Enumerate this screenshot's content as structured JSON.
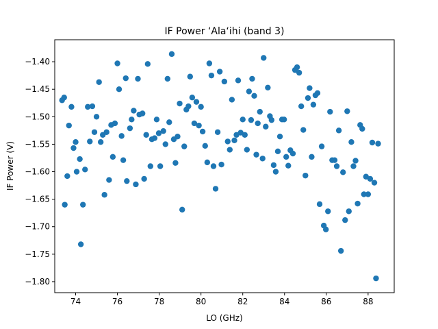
{
  "chart_data": {
    "type": "scatter",
    "title": "IF Power ‘Ala‘ihi (band 3)",
    "xlabel": "LO (GHz)",
    "ylabel": "IF Power (V)",
    "xlim": [
      73.0,
      89.25
    ],
    "ylim": [
      -1.82,
      -1.36
    ],
    "xticks": [
      74,
      76,
      78,
      80,
      82,
      84,
      86,
      88
    ],
    "xtick_labels": [
      "74",
      "76",
      "78",
      "80",
      "82",
      "84",
      "86",
      "88"
    ],
    "yticks": [
      -1.4,
      -1.45,
      -1.5,
      -1.55,
      -1.6,
      -1.65,
      -1.7,
      -1.75,
      -1.8
    ],
    "ytick_labels": [
      "−1.40",
      "−1.45",
      "−1.50",
      "−1.55",
      "−1.60",
      "−1.65",
      "−1.70",
      "−1.75",
      "−1.80"
    ],
    "grid": false,
    "marker_color": "#1f77b4",
    "series": [
      {
        "points": [
          [
            73.35,
            -1.47
          ],
          [
            73.45,
            -1.465
          ],
          [
            73.48,
            -1.66
          ],
          [
            73.6,
            -1.608
          ],
          [
            73.68,
            -1.516
          ],
          [
            73.8,
            -1.482
          ],
          [
            73.9,
            -1.557
          ],
          [
            74.0,
            -1.546
          ],
          [
            74.05,
            -1.6
          ],
          [
            74.2,
            -1.577
          ],
          [
            74.25,
            -1.732
          ],
          [
            74.35,
            -1.66
          ],
          [
            74.45,
            -1.596
          ],
          [
            74.58,
            -1.482
          ],
          [
            74.68,
            -1.545
          ],
          [
            74.8,
            -1.481
          ],
          [
            74.9,
            -1.528
          ],
          [
            75.0,
            -1.5
          ],
          [
            75.12,
            -1.437
          ],
          [
            75.2,
            -1.546
          ],
          [
            75.3,
            -1.533
          ],
          [
            75.38,
            -1.642
          ],
          [
            75.48,
            -1.528
          ],
          [
            75.6,
            -1.615
          ],
          [
            75.7,
            -1.515
          ],
          [
            75.78,
            -1.573
          ],
          [
            75.88,
            -1.512
          ],
          [
            76.0,
            -1.403
          ],
          [
            76.08,
            -1.45
          ],
          [
            76.2,
            -1.535
          ],
          [
            76.28,
            -1.579
          ],
          [
            76.4,
            -1.43
          ],
          [
            76.45,
            -1.617
          ],
          [
            76.6,
            -1.521
          ],
          [
            76.68,
            -1.505
          ],
          [
            76.78,
            -1.489
          ],
          [
            76.88,
            -1.623
          ],
          [
            76.98,
            -1.431
          ],
          [
            77.05,
            -1.496
          ],
          [
            77.2,
            -1.494
          ],
          [
            77.28,
            -1.613
          ],
          [
            77.38,
            -1.533
          ],
          [
            77.45,
            -1.404
          ],
          [
            77.58,
            -1.59
          ],
          [
            77.65,
            -1.541
          ],
          [
            77.78,
            -1.539
          ],
          [
            77.88,
            -1.505
          ],
          [
            77.98,
            -1.53
          ],
          [
            78.05,
            -1.59
          ],
          [
            78.2,
            -1.526
          ],
          [
            78.3,
            -1.55
          ],
          [
            78.4,
            -1.431
          ],
          [
            78.48,
            -1.51
          ],
          [
            78.6,
            -1.386
          ],
          [
            78.7,
            -1.541
          ],
          [
            78.78,
            -1.584
          ],
          [
            78.88,
            -1.536
          ],
          [
            78.98,
            -1.476
          ],
          [
            79.1,
            -1.669
          ],
          [
            79.2,
            -1.554
          ],
          [
            79.3,
            -1.487
          ],
          [
            79.4,
            -1.481
          ],
          [
            79.48,
            -1.427
          ],
          [
            79.58,
            -1.465
          ],
          [
            79.68,
            -1.512
          ],
          [
            79.78,
            -1.473
          ],
          [
            79.9,
            -1.516
          ],
          [
            80.0,
            -1.482
          ],
          [
            80.08,
            -1.527
          ],
          [
            80.2,
            -1.553
          ],
          [
            80.3,
            -1.583
          ],
          [
            80.4,
            -1.403
          ],
          [
            80.5,
            -1.425
          ],
          [
            80.6,
            -1.59
          ],
          [
            80.7,
            -1.631
          ],
          [
            80.8,
            -1.528
          ],
          [
            80.9,
            -1.418
          ],
          [
            80.98,
            -1.587
          ],
          [
            81.12,
            -1.436
          ],
          [
            81.28,
            -1.545
          ],
          [
            81.38,
            -1.56
          ],
          [
            81.48,
            -1.469
          ],
          [
            81.6,
            -1.543
          ],
          [
            81.7,
            -1.533
          ],
          [
            81.78,
            -1.434
          ],
          [
            81.9,
            -1.529
          ],
          [
            82.0,
            -1.505
          ],
          [
            82.1,
            -1.533
          ],
          [
            82.2,
            -1.56
          ],
          [
            82.3,
            -1.454
          ],
          [
            82.4,
            -1.506
          ],
          [
            82.45,
            -1.431
          ],
          [
            82.55,
            -1.462
          ],
          [
            82.65,
            -1.569
          ],
          [
            82.72,
            -1.512
          ],
          [
            82.82,
            -1.491
          ],
          [
            82.95,
            -1.576
          ],
          [
            83.0,
            -1.393
          ],
          [
            83.1,
            -1.518
          ],
          [
            83.2,
            -1.447
          ],
          [
            83.3,
            -1.499
          ],
          [
            83.38,
            -1.506
          ],
          [
            83.48,
            -1.588
          ],
          [
            83.58,
            -1.6
          ],
          [
            83.68,
            -1.563
          ],
          [
            83.78,
            -1.536
          ],
          [
            83.88,
            -1.505
          ],
          [
            83.98,
            -1.505
          ],
          [
            84.08,
            -1.573
          ],
          [
            84.18,
            -1.589
          ],
          [
            84.28,
            -1.561
          ],
          [
            84.4,
            -1.567
          ],
          [
            84.5,
            -1.415
          ],
          [
            84.6,
            -1.41
          ],
          [
            84.7,
            -1.42
          ],
          [
            84.8,
            -1.481
          ],
          [
            84.9,
            -1.524
          ],
          [
            85.0,
            -1.607
          ],
          [
            85.12,
            -1.466
          ],
          [
            85.2,
            -1.448
          ],
          [
            85.3,
            -1.573
          ],
          [
            85.38,
            -1.478
          ],
          [
            85.48,
            -1.461
          ],
          [
            85.58,
            -1.457
          ],
          [
            85.68,
            -1.659
          ],
          [
            85.78,
            -1.554
          ],
          [
            85.88,
            -1.698
          ],
          [
            85.98,
            -1.705
          ],
          [
            86.08,
            -1.672
          ],
          [
            86.18,
            -1.491
          ],
          [
            86.28,
            -1.579
          ],
          [
            86.4,
            -1.579
          ],
          [
            86.5,
            -1.59
          ],
          [
            86.6,
            -1.525
          ],
          [
            86.7,
            -1.744
          ],
          [
            86.8,
            -1.601
          ],
          [
            86.9,
            -1.688
          ],
          [
            87.0,
            -1.49
          ],
          [
            87.08,
            -1.672
          ],
          [
            87.2,
            -1.546
          ],
          [
            87.3,
            -1.59
          ],
          [
            87.4,
            -1.58
          ],
          [
            87.5,
            -1.658
          ],
          [
            87.62,
            -1.515
          ],
          [
            87.72,
            -1.522
          ],
          [
            87.8,
            -1.641
          ],
          [
            87.9,
            -1.609
          ],
          [
            88.0,
            -1.641
          ],
          [
            88.1,
            -1.613
          ],
          [
            88.2,
            -1.547
          ],
          [
            88.3,
            -1.62
          ],
          [
            88.38,
            -1.794
          ],
          [
            88.48,
            -1.549
          ]
        ]
      }
    ]
  }
}
